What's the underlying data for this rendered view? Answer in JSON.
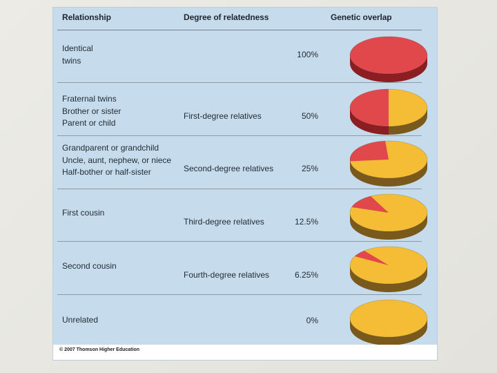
{
  "header": {
    "relationship": "Relationship",
    "degree": "Degree of relatedness",
    "overlap": "Genetic overlap"
  },
  "rows": [
    {
      "relationship": [
        "Identical",
        "twins"
      ],
      "degree": "",
      "overlap_label": "100%",
      "overlap_value": 100
    },
    {
      "relationship": [
        "Fraternal twins",
        "Brother or sister",
        "Parent or child"
      ],
      "degree": "First-degree relatives",
      "overlap_label": "50%",
      "overlap_value": 50
    },
    {
      "relationship": [
        "Grandparent or grandchild",
        "Uncle, aunt, nephew, or niece",
        "Half-bother or half-sister"
      ],
      "degree": "Second-degree relatives",
      "overlap_label": "25%",
      "overlap_value": 25
    },
    {
      "relationship": [
        "First cousin"
      ],
      "degree": "Third-degree relatives",
      "overlap_label": "12.5%",
      "overlap_value": 12.5
    },
    {
      "relationship": [
        "Second cousin"
      ],
      "degree": "Fourth-degree relatives",
      "overlap_label": "6.25%",
      "overlap_value": 6.25
    },
    {
      "relationship": [
        "Unrelated"
      ],
      "degree": "",
      "overlap_label": "0%",
      "overlap_value": 0
    }
  ],
  "colors": {
    "shared": "#e0484b",
    "shared_side": "#8a1e22",
    "unshared": "#f4bd35",
    "unshared_side": "#7a5a1c"
  },
  "footer": {
    "credit": "© 2007 Thomson Higher Education"
  }
}
